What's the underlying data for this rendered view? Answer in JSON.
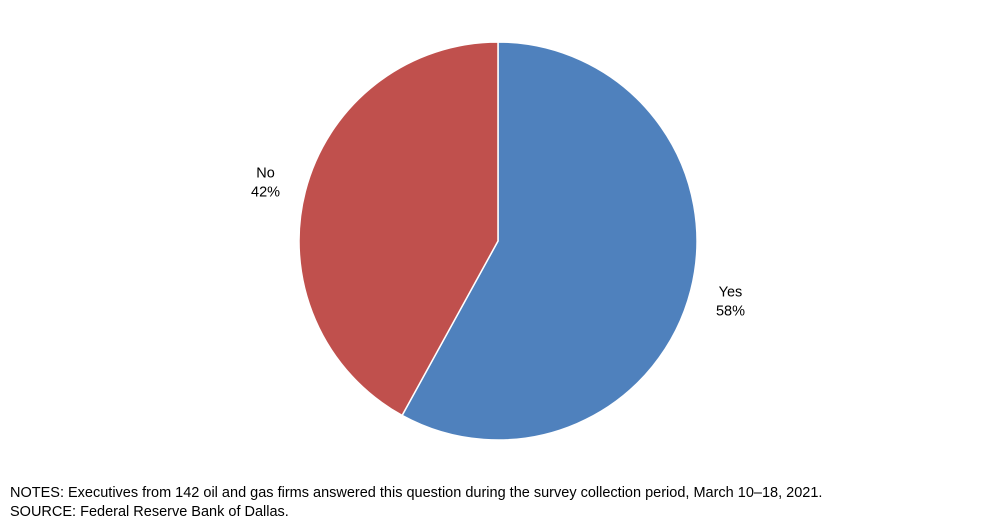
{
  "chart_data": {
    "type": "pie",
    "slices": [
      {
        "label": "Yes",
        "value": 58,
        "value_label": "58%",
        "color": "#4F81BD"
      },
      {
        "label": "No",
        "value": 42,
        "value_label": "42%",
        "color": "#C0504D"
      }
    ],
    "start_angle": "12 o'clock",
    "direction": "clockwise",
    "slice_border_color": "#ffffff",
    "legend": "none",
    "data_labels": "outside"
  },
  "footer": {
    "notes": "NOTES: Executives from 142 oil and gas firms answered this question during the survey collection period, March 10–18, 2021.",
    "source": "SOURCE: Federal Reserve Bank of Dallas."
  }
}
